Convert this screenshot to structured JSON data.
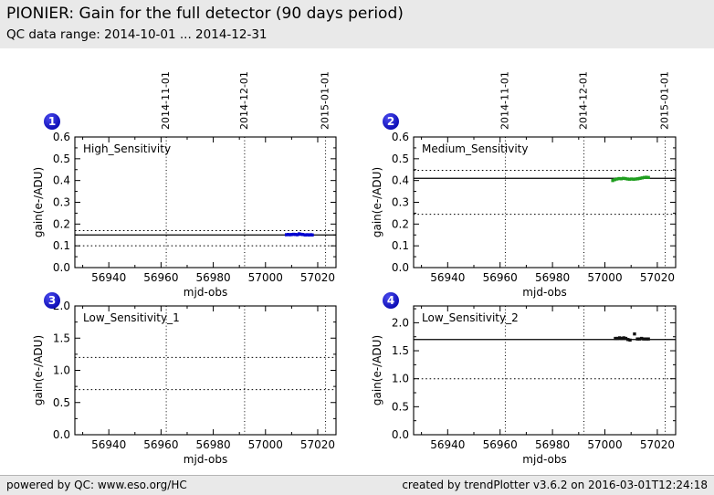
{
  "header": {
    "title": "PIONIER: Gain for the full detector (90 days period)",
    "subtitle": "QC data range: 2014-10-01 ... 2014-12-31"
  },
  "footer": {
    "left": "powered by QC: www.eso.org/HC",
    "right": "created by trendPlotter v3.6.2 on 2016-03-01T12:24:18"
  },
  "colors": {
    "header_bg": "#e9e9e9",
    "footer_bg": "#e9e9e9",
    "badge_blue": "#1414c8",
    "plot1_marker": "#0000d0",
    "plot2_marker": "#1f9e1f",
    "plot4_marker": "#111111"
  },
  "chart_data": [
    {
      "badge": "1",
      "type": "scatter",
      "label": "High_Sensitivity",
      "xlabel": "mjd-obs",
      "ylabel": "gain(e-/ADU)",
      "xlim": [
        56927,
        57027
      ],
      "ylim": [
        0,
        0.6
      ],
      "xticks": [
        56940,
        56960,
        56980,
        57000,
        57020
      ],
      "yticks": [
        0,
        0.1,
        0.2,
        0.3,
        0.4,
        0.5,
        0.6
      ],
      "date_labels": true,
      "date_lines": [
        {
          "mjd": 56962,
          "label": "2014-11-01"
        },
        {
          "mjd": 56992,
          "label": "2014-12-01"
        },
        {
          "mjd": 57023,
          "label": "2015-01-01"
        }
      ],
      "avg_line": 0.15,
      "threshold_lines": [
        0.17,
        0.1
      ],
      "marker_color": "#0000d0",
      "points": [
        [
          57008.0,
          0.151
        ],
        [
          57008.7,
          0.152
        ],
        [
          57009.4,
          0.151
        ],
        [
          57010.1,
          0.152
        ],
        [
          57010.8,
          0.153
        ],
        [
          57011.5,
          0.152
        ],
        [
          57012.2,
          0.151
        ],
        [
          57012.9,
          0.155
        ],
        [
          57013.6,
          0.153
        ],
        [
          57014.3,
          0.152
        ],
        [
          57015.2,
          0.15
        ],
        [
          57015.9,
          0.151
        ],
        [
          57016.6,
          0.15
        ],
        [
          57017.3,
          0.151
        ],
        [
          57017.9,
          0.15
        ]
      ]
    },
    {
      "badge": "2",
      "type": "scatter",
      "label": "Medium_Sensitivity",
      "xlabel": "mjd-obs",
      "ylabel": "gain(e-/ADU)",
      "xlim": [
        56927,
        57027
      ],
      "ylim": [
        0,
        0.6
      ],
      "xticks": [
        56940,
        56960,
        56980,
        57000,
        57020
      ],
      "yticks": [
        0,
        0.1,
        0.2,
        0.3,
        0.4,
        0.5,
        0.6
      ],
      "date_labels": true,
      "date_lines": [
        {
          "mjd": 56962,
          "label": "2014-11-01"
        },
        {
          "mjd": 56992,
          "label": "2014-12-01"
        },
        {
          "mjd": 57023,
          "label": "2015-01-01"
        }
      ],
      "avg_line": 0.41,
      "threshold_lines": [
        0.447,
        0.245
      ],
      "marker_color": "#1f9e1f",
      "points": [
        [
          57003.0,
          0.4
        ],
        [
          57003.8,
          0.404
        ],
        [
          57004.6,
          0.407
        ],
        [
          57005.4,
          0.409
        ],
        [
          57006.2,
          0.408
        ],
        [
          57007.0,
          0.41
        ],
        [
          57007.8,
          0.409
        ],
        [
          57008.6,
          0.407
        ],
        [
          57009.4,
          0.406
        ],
        [
          57010.2,
          0.407
        ],
        [
          57011.0,
          0.406
        ],
        [
          57011.8,
          0.407
        ],
        [
          57012.6,
          0.408
        ],
        [
          57013.4,
          0.41
        ],
        [
          57014.2,
          0.412
        ],
        [
          57015.0,
          0.414
        ],
        [
          57015.8,
          0.415
        ],
        [
          57016.6,
          0.414
        ]
      ]
    },
    {
      "badge": "3",
      "type": "scatter",
      "label": "Low_Sensitivity_1",
      "xlabel": "mjd-obs",
      "ylabel": "gain(e-/ADU)",
      "xlim": [
        56927,
        57027
      ],
      "ylim": [
        0,
        2.0
      ],
      "xticks": [
        56940,
        56960,
        56980,
        57000,
        57020
      ],
      "yticks": [
        0,
        0.5,
        1.0,
        1.5,
        2.0
      ],
      "date_labels": false,
      "date_lines": [
        {
          "mjd": 56962,
          "label": "2014-11-01"
        },
        {
          "mjd": 56992,
          "label": "2014-12-01"
        },
        {
          "mjd": 57023,
          "label": "2015-01-01"
        }
      ],
      "avg_line": null,
      "threshold_lines": [
        1.2,
        0.7
      ],
      "marker_color": "#111111",
      "points": []
    },
    {
      "badge": "4",
      "type": "scatter",
      "label": "Low_Sensitivity_2",
      "xlabel": "mjd-obs",
      "ylabel": "gain(e-/ADU)",
      "xlim": [
        56927,
        57027
      ],
      "ylim": [
        0,
        2.3
      ],
      "xticks": [
        56940,
        56960,
        56980,
        57000,
        57020
      ],
      "yticks": [
        0,
        0.5,
        1.0,
        1.5,
        2.0
      ],
      "date_labels": false,
      "date_lines": [
        {
          "mjd": 56962,
          "label": "2014-11-01"
        },
        {
          "mjd": 56992,
          "label": "2014-12-01"
        },
        {
          "mjd": 57023,
          "label": "2015-01-01"
        }
      ],
      "avg_line": 1.7,
      "threshold_lines": [
        1.0
      ],
      "marker_color": "#111111",
      "points": [
        [
          57004.0,
          1.72
        ],
        [
          57004.8,
          1.72
        ],
        [
          57005.6,
          1.73
        ],
        [
          57006.4,
          1.72
        ],
        [
          57007.2,
          1.73
        ],
        [
          57008.0,
          1.72
        ],
        [
          57008.8,
          1.7
        ],
        [
          57009.6,
          1.69
        ],
        [
          57011.3,
          1.8
        ],
        [
          57012.4,
          1.71
        ],
        [
          57013.2,
          1.71
        ],
        [
          57014.0,
          1.72
        ],
        [
          57014.8,
          1.71
        ],
        [
          57015.8,
          1.71
        ],
        [
          57016.6,
          1.71
        ]
      ]
    }
  ]
}
